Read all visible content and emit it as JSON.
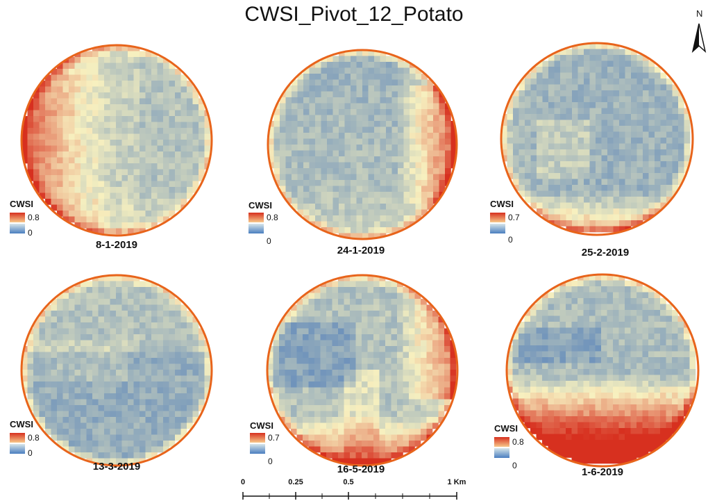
{
  "title": "CWSI_Pivot_12_Potato",
  "north_label": "N",
  "legend_title": "CWSI",
  "colors": {
    "low": "#3f72b9",
    "mid": "#f7f0bf",
    "high": "#d7301f",
    "outline": "#e8641b"
  },
  "panels": [
    {
      "date": "8-1-2019",
      "cwsi_max": "0.8",
      "cwsi_min": "0",
      "hotspot": "west"
    },
    {
      "date": "24-1-2019",
      "cwsi_max": "0.8",
      "cwsi_min": "0",
      "hotspot": "east"
    },
    {
      "date": "25-2-2019",
      "cwsi_max": "0.7",
      "cwsi_min": "0",
      "hotspot": "south rim"
    },
    {
      "date": "13-3-2019",
      "cwsi_max": "0.8",
      "cwsi_min": "0",
      "hotspot": "none"
    },
    {
      "date": "16-5-2019",
      "cwsi_max": "0.7",
      "cwsi_min": "0",
      "hotspot": "south and north-east"
    },
    {
      "date": "1-6-2019",
      "cwsi_max": "0.8",
      "cwsi_min": "0",
      "hotspot": "southern half"
    }
  ],
  "scalebar": {
    "ticks": [
      "0",
      "0.25",
      "0.5",
      "1 Km"
    ]
  }
}
